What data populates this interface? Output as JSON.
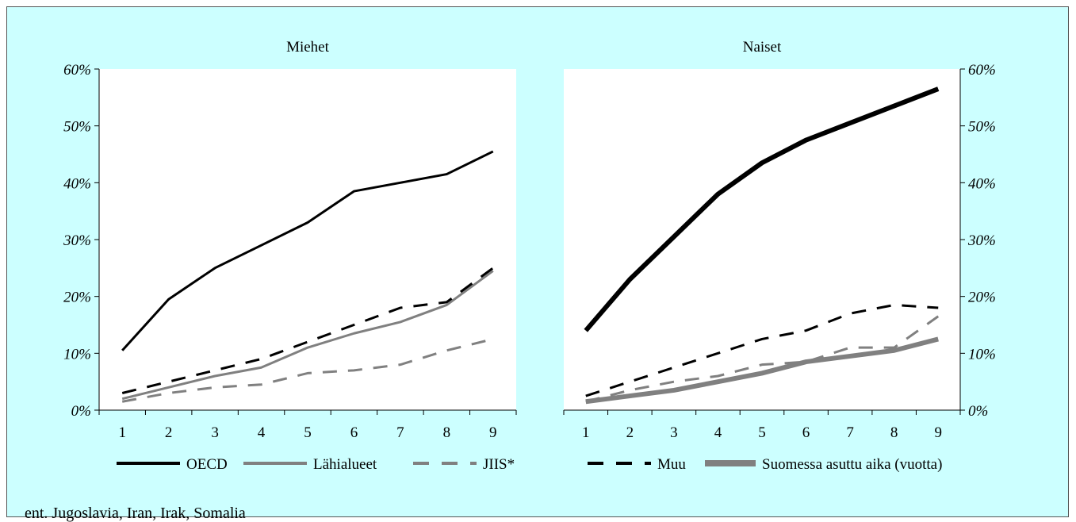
{
  "chart_data": [
    {
      "type": "line",
      "title": "Miehet",
      "x": [
        1,
        2,
        3,
        4,
        5,
        6,
        7,
        8,
        9
      ],
      "ylim": [
        0,
        60
      ],
      "yticks": [
        "0%",
        "10%",
        "20%",
        "30%",
        "40%",
        "50%",
        "60%"
      ],
      "y_axis_side": "left",
      "series": [
        {
          "name": "OECD",
          "values": [
            10.5,
            19.5,
            25,
            29,
            33,
            38.5,
            40,
            41.5,
            45.5
          ]
        },
        {
          "name": "Lähialueet",
          "values": [
            2,
            4,
            6,
            7.5,
            11,
            13.5,
            15.5,
            18.5,
            24.5
          ]
        },
        {
          "name": "JIIS*",
          "values": [
            1.5,
            3,
            4,
            4.5,
            6.5,
            7,
            8,
            10.5,
            12.5
          ]
        },
        {
          "name": "Muu",
          "values": [
            3,
            5,
            7,
            9,
            12,
            15,
            18,
            19,
            25
          ]
        }
      ]
    },
    {
      "type": "line",
      "title": "Naiset",
      "x": [
        1,
        2,
        3,
        4,
        5,
        6,
        7,
        8,
        9
      ],
      "ylim": [
        0,
        60
      ],
      "yticks": [
        "0%",
        "10%",
        "20%",
        "30%",
        "40%",
        "50%",
        "60%"
      ],
      "y_axis_side": "right",
      "series": [
        {
          "name": "OECD",
          "values": [
            14,
            23,
            30.5,
            38,
            43.5,
            47.5,
            50.5,
            53.5,
            56.5
          ]
        },
        {
          "name": "Lähialueet",
          "values": [
            1.5,
            3.5,
            5,
            6,
            8,
            8.5,
            11,
            11,
            16.5
          ]
        },
        {
          "name": "JIIS*",
          "values": [
            1.5,
            2.5,
            3.5,
            5,
            6.5,
            8.5,
            9.5,
            10.5,
            12.5
          ]
        },
        {
          "name": "Muu",
          "values": [
            2.5,
            5,
            7.5,
            10,
            12.5,
            14,
            17,
            18.5,
            18
          ]
        }
      ]
    }
  ],
  "legend": {
    "position": "bottom",
    "items": [
      {
        "label": "OECD",
        "style": "solid-black"
      },
      {
        "label": "Lähialueet",
        "style": "solid-gray"
      },
      {
        "label": "JIIS*",
        "style": "dashed-gray"
      },
      {
        "label": "Muu",
        "style": "dashed-black"
      },
      {
        "label": "Suomessa asuttu aika (vuotta)",
        "style": "thick-gray"
      }
    ]
  },
  "footnote": "ent. Jugoslavia, Iran, Irak, Somalia",
  "colors": {
    "background": "#ccffff",
    "black": "#000000",
    "gray": "#808080"
  }
}
